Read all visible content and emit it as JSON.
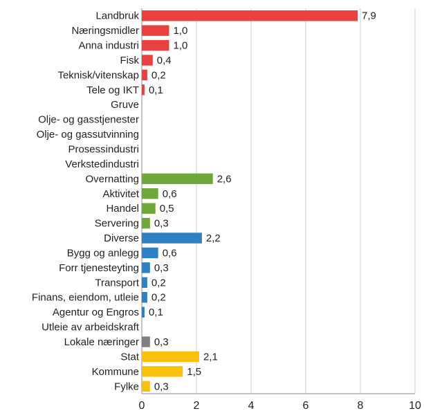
{
  "chart_data": {
    "type": "hbar",
    "categories": [
      "Landbruk",
      "Næringsmidler",
      "Anna industri",
      "Fisk",
      "Teknisk/vitenskap",
      "Tele og IKT",
      "Gruve",
      "Olje- og gasstjenester",
      "Olje- og gassutvinning",
      "Prosessindustri",
      "Verkstedindustri",
      "Overnatting",
      "Aktivitet",
      "Handel",
      "Servering",
      "Diverse",
      "Bygg og anlegg",
      "Forr tjenesteyting",
      "Transport",
      "Finans, eiendom, utleie",
      "Agentur og Engros",
      "Utleie av arbeidskraft",
      "Lokale næringer",
      "Stat",
      "Kommune",
      "Fylke"
    ],
    "values": [
      7.9,
      1.0,
      1.0,
      0.4,
      0.2,
      0.1,
      0,
      0,
      0,
      0,
      0,
      2.6,
      0.6,
      0.5,
      0.3,
      2.2,
      0.6,
      0.3,
      0.2,
      0.2,
      0.1,
      0,
      0.3,
      2.1,
      1.5,
      0.3
    ],
    "value_labels": [
      "7,9",
      "1,0",
      "1,0",
      "0,4",
      "0,2",
      "0,1",
      null,
      null,
      null,
      null,
      null,
      "2,6",
      "0,6",
      "0,5",
      "0,3",
      "2,2",
      "0,6",
      "0,3",
      "0,2",
      "0,2",
      "0,1",
      null,
      "0,3",
      "2,1",
      "1,5",
      "0,3"
    ],
    "colors": [
      "#e8413f",
      "#e8413f",
      "#e8413f",
      "#e8413f",
      "#e8413f",
      "#e8413f",
      "#e8413f",
      "#e8413f",
      "#e8413f",
      "#e8413f",
      "#e8413f",
      "#6ea83a",
      "#6ea83a",
      "#6ea83a",
      "#6ea83a",
      "#2c80c4",
      "#2c80c4",
      "#2c80c4",
      "#2c80c4",
      "#2c80c4",
      "#2c80c4",
      "#2c80c4",
      "#808080",
      "#f9c10e",
      "#f9c10e",
      "#f9c10e"
    ],
    "xlim": [
      0,
      10
    ],
    "xticks": [
      0,
      2,
      4,
      6,
      8,
      10
    ],
    "grid": true
  }
}
